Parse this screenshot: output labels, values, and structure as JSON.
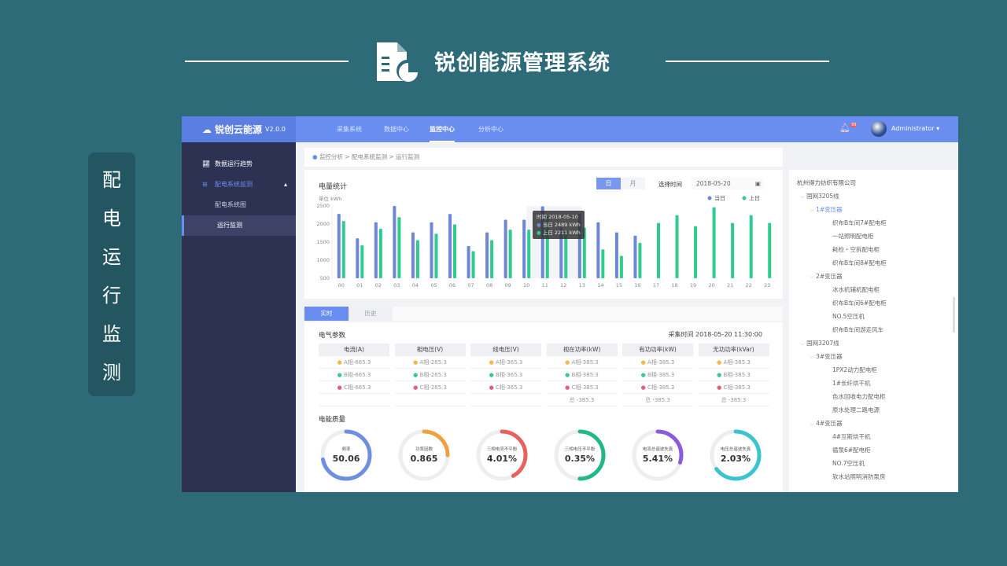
{
  "slide": {
    "title": "锐创能源管理系统",
    "side_label": [
      "配",
      "电",
      "运",
      "行",
      "监",
      "测"
    ]
  },
  "header": {
    "logo": "锐创云能源",
    "version": "V2.0.0",
    "nav": [
      "采集系统",
      "数据中心",
      "监控中心",
      "分析中心"
    ],
    "active_nav": "监控中心",
    "user": "Administrator",
    "notif_badge": "99"
  },
  "sidebar": {
    "items": [
      {
        "label": "数据运行趋势",
        "icon": "chart-icon"
      },
      {
        "label": "配电系统监测",
        "icon": "monitor-icon"
      },
      {
        "label": "配电系统图"
      },
      {
        "label": "运行监测",
        "selected": true
      }
    ]
  },
  "breadcrumb": "监控分析 > 配电系统监测 > 运行监测",
  "energy": {
    "title": "电量统计",
    "tabs": [
      "日",
      "月"
    ],
    "active_tab": "日",
    "date_label": "选择时间",
    "date": "2018-05-20",
    "unit": "单位  kWh",
    "tooltip": {
      "time": "时间 2018-05-10",
      "today": "当日 2489 kWh",
      "yesterday": "上日 2211 kWh"
    }
  },
  "chart_data": {
    "type": "bar",
    "categories": [
      "00",
      "01",
      "02",
      "03",
      "04",
      "05",
      "06",
      "07",
      "08",
      "09",
      "10",
      "11",
      "12",
      "13",
      "14",
      "15",
      "16",
      "17",
      "18",
      "19",
      "20",
      "21",
      "22",
      "23"
    ],
    "series": [
      {
        "name": "当日",
        "color": "#6f86d6",
        "values": [
          2280,
          1605,
          2050,
          2500,
          1770,
          2050,
          2280,
          1395,
          1770,
          2120,
          2120,
          2489,
          1900,
          2280,
          2050,
          1770,
          1680,
          null,
          null,
          null,
          null,
          null,
          null,
          null
        ]
      },
      {
        "name": "上日",
        "color": "#2fcb8f",
        "values": [
          2085,
          1410,
          1870,
          2190,
          1555,
          1735,
          1990,
          1250,
          1555,
          1845,
          1845,
          2211,
          1800,
          1900,
          1300,
          1120,
          1480,
          2030,
          2245,
          1940,
          2465,
          2030,
          2245,
          2030
        ]
      }
    ],
    "yticks": [
      "2500",
      "2000",
      "1500",
      "1000",
      "500"
    ],
    "ylim": [
      500,
      2500
    ],
    "ylabel": "单位  kWh",
    "legend": "top-right"
  },
  "tabs": [
    "实时",
    "历史"
  ],
  "active_tab": "实时",
  "params": {
    "title": "电气参数",
    "time": "采集时间  2018-05-20  11:30:00",
    "columns": [
      {
        "h": "电流(A)",
        "rows": [
          "A相-665.3",
          "B相-665.3",
          "C相-665.3",
          ""
        ]
      },
      {
        "h": "相电压(V)",
        "rows": [
          "A相-265.3",
          "B相-265.3",
          "C相-265.3",
          ""
        ]
      },
      {
        "h": "线电压(V)",
        "rows": [
          "A相-365.3",
          "B相-365.3",
          "C相-365.3",
          ""
        ]
      },
      {
        "h": "视在功率(kW)",
        "rows": [
          "A相-385.3",
          "B相-385.3",
          "C相-385.3",
          "总 -385.3"
        ]
      },
      {
        "h": "有功功率(kW)",
        "rows": [
          "A相-385.3",
          "B相-385.3",
          "C相-385.3",
          "总 -385.3"
        ]
      },
      {
        "h": "无功功率(kVar)",
        "rows": [
          "A相-385.3",
          "B相-385.3",
          "C相-385.3",
          "总 -385.3"
        ]
      }
    ],
    "dot_colors": [
      "#f0b94a",
      "#3cc7a0",
      "#e0607a"
    ]
  },
  "quality": {
    "title": "电能质量",
    "gauges": [
      {
        "label": "频率",
        "value": "50.06",
        "fill": 0.72,
        "color": "#6f8ee0"
      },
      {
        "label": "功率因数",
        "value": "0.865",
        "fill": 0.25,
        "color": "#f0a040"
      },
      {
        "label": "三相电流不平衡",
        "value": "4.01%",
        "fill": 0.42,
        "color": "#e86060"
      },
      {
        "label": "三相电压不平衡",
        "value": "0.35%",
        "fill": 0.5,
        "color": "#22b98a"
      },
      {
        "label": "电流总谐波失真",
        "value": "5.41%",
        "fill": 0.3,
        "color": "#8a5be0"
      },
      {
        "label": "电压总谐波失真",
        "value": "2.03%",
        "fill": 0.65,
        "color": "#3cc3d0"
      }
    ]
  },
  "tree": {
    "company": "杭州得力纺织有限公司",
    "nodes": [
      {
        "t": "国网3205线",
        "l": 1
      },
      {
        "t": "1#变压器",
        "l": 2,
        "sel": true
      },
      {
        "t": "织布B车间7#配电柜",
        "l": 3
      },
      {
        "t": "一站照明配电柜",
        "l": 3
      },
      {
        "t": "耗检・空拆配电柜",
        "l": 3
      },
      {
        "t": "织布B车间8#配电柜",
        "l": 3
      },
      {
        "t": "2#变压器",
        "l": 2
      },
      {
        "t": "冰水机辅机配电柜",
        "l": 3
      },
      {
        "t": "织布B车间6#配电柜",
        "l": 3
      },
      {
        "t": "NO.5空压机",
        "l": 3
      },
      {
        "t": "织布B车间游走风车",
        "l": 3
      },
      {
        "t": "国网3207线",
        "l": 1
      },
      {
        "t": "3#变压器",
        "l": 2
      },
      {
        "t": "1PX2动力配电柜",
        "l": 3
      },
      {
        "t": "1#长纤烘干机",
        "l": 3
      },
      {
        "t": "色水回收电力配电柜",
        "l": 3
      },
      {
        "t": "原水处理二路电源",
        "l": 3
      },
      {
        "t": "4#变压器",
        "l": 2
      },
      {
        "t": "4#互斯烘干机",
        "l": 3
      },
      {
        "t": "循泵6#配电柜",
        "l": 3
      },
      {
        "t": "NO.7空压机",
        "l": 3
      },
      {
        "t": "软水站照明消防泵房",
        "l": 3
      }
    ]
  }
}
